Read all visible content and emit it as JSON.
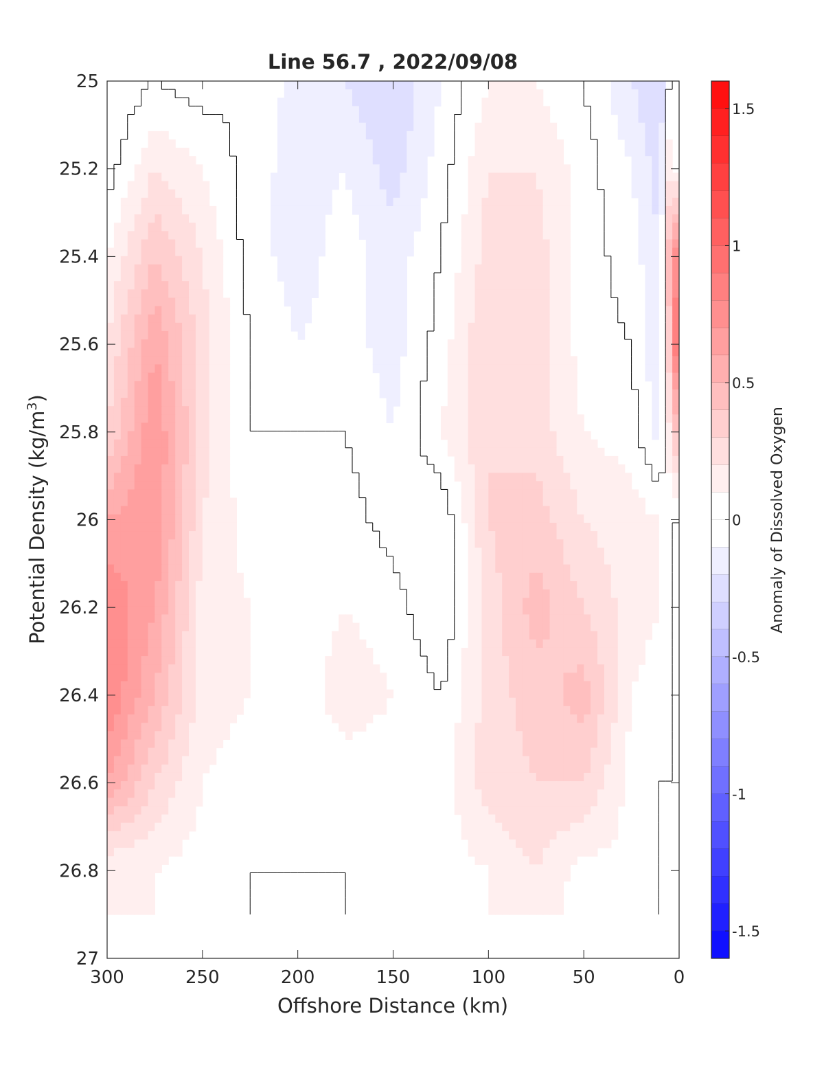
{
  "chart_data": {
    "type": "heatmap",
    "title": "Line 56.7 , 2022/09/08",
    "xlabel": "Offshore Distance (km)",
    "ylabel_main": "Potential Density (kg/m",
    "ylabel_sup": "3",
    "ylabel_close": ")",
    "colorbar_label": "Anomaly of Dissolved Oxygen",
    "xlim": [
      300,
      0
    ],
    "ylim": [
      25,
      27
    ],
    "clim": [
      -1.6,
      1.6
    ],
    "contour_step": 0.1,
    "zero_contour": true,
    "grid": false,
    "x_ticks": [
      300,
      250,
      200,
      150,
      100,
      50,
      0
    ],
    "x_tick_labels": [
      "300",
      "250",
      "200",
      "150",
      "100",
      "50",
      "0"
    ],
    "y_ticks": [
      25,
      25.2,
      25.4,
      25.6,
      25.8,
      26,
      26.2,
      26.4,
      26.6,
      26.8,
      27
    ],
    "y_tick_labels": [
      "25",
      "25.2",
      "25.4",
      "25.6",
      "25.8",
      "26",
      "26.2",
      "26.4",
      "26.6",
      "26.8",
      "27"
    ],
    "colorbar_ticks": [
      1.5,
      1,
      0.5,
      0,
      -0.5,
      -1,
      -1.5
    ],
    "colorbar_tick_labels": [
      "1.5",
      "1",
      "0.5",
      "0",
      "-0.5",
      "-1",
      "-1.5"
    ],
    "data_density_max": 26.9,
    "anomaly_field": {
      "x": [
        300,
        275,
        250,
        225,
        200,
        175,
        150,
        125,
        100,
        75,
        50,
        25,
        10,
        5,
        0
      ],
      "y": [
        25,
        25.2,
        25.4,
        25.6,
        25.8,
        26,
        26.2,
        26.4,
        26.6,
        26.8,
        26.9
      ],
      "z": [
        [
          -0.1,
          0.0,
          -0.05,
          0.0,
          -0.15,
          -0.2,
          -0.3,
          -0.1,
          0.1,
          0.1,
          0.0,
          -0.2,
          -0.3,
          0.0,
          0.0
        ],
        [
          -0.05,
          0.2,
          0.1,
          -0.05,
          -0.15,
          -0.1,
          -0.25,
          -0.05,
          0.2,
          0.2,
          0.05,
          -0.1,
          -0.25,
          0.2,
          0.0
        ],
        [
          0.1,
          0.4,
          0.2,
          -0.05,
          -0.15,
          -0.05,
          -0.15,
          0.0,
          0.25,
          0.25,
          0.05,
          -0.05,
          -0.2,
          0.5,
          0.9
        ],
        [
          0.2,
          0.6,
          0.25,
          0.0,
          -0.1,
          -0.05,
          -0.15,
          0.05,
          0.3,
          0.25,
          0.05,
          0.0,
          -0.2,
          0.4,
          1.1
        ],
        [
          0.3,
          0.7,
          0.25,
          0.0,
          0.0,
          0.0,
          -0.1,
          0.1,
          0.3,
          0.25,
          0.1,
          0.05,
          -0.15,
          0.2,
          0.5
        ],
        [
          0.6,
          0.7,
          0.2,
          0.05,
          0.05,
          0.05,
          -0.05,
          -0.1,
          0.3,
          0.35,
          0.2,
          0.15,
          0.1,
          0.0,
          0.0
        ],
        [
          0.8,
          0.6,
          0.15,
          0.1,
          0.05,
          0.1,
          0.05,
          -0.1,
          0.25,
          0.45,
          0.3,
          0.15,
          0.1,
          0.0,
          0.0
        ],
        [
          0.8,
          0.5,
          0.15,
          0.1,
          0.05,
          0.15,
          0.1,
          0.0,
          0.25,
          0.35,
          0.45,
          0.1,
          0.05,
          0.0,
          0.0
        ],
        [
          0.6,
          0.3,
          0.1,
          0.05,
          0.0,
          0.05,
          0.05,
          0.05,
          0.25,
          0.3,
          0.3,
          0.05,
          0.0,
          0.0,
          0.0
        ],
        [
          0.1,
          0.1,
          0.05,
          0.0,
          0.0,
          0.0,
          0.05,
          0.05,
          0.1,
          0.2,
          0.05,
          0.1,
          0.0,
          0.0,
          0.0
        ],
        [
          0.1,
          0.1,
          0.05,
          0.0,
          0.0,
          0.0,
          0.05,
          0.05,
          0.1,
          0.15,
          0.05,
          0.0,
          0.0,
          0.0,
          0.0
        ]
      ]
    },
    "colors": {
      "negative_max": "#0000ff",
      "zero": "#ffffff",
      "positive_max": "#ff0000",
      "contour": "#000000",
      "axes": "#262626"
    }
  }
}
